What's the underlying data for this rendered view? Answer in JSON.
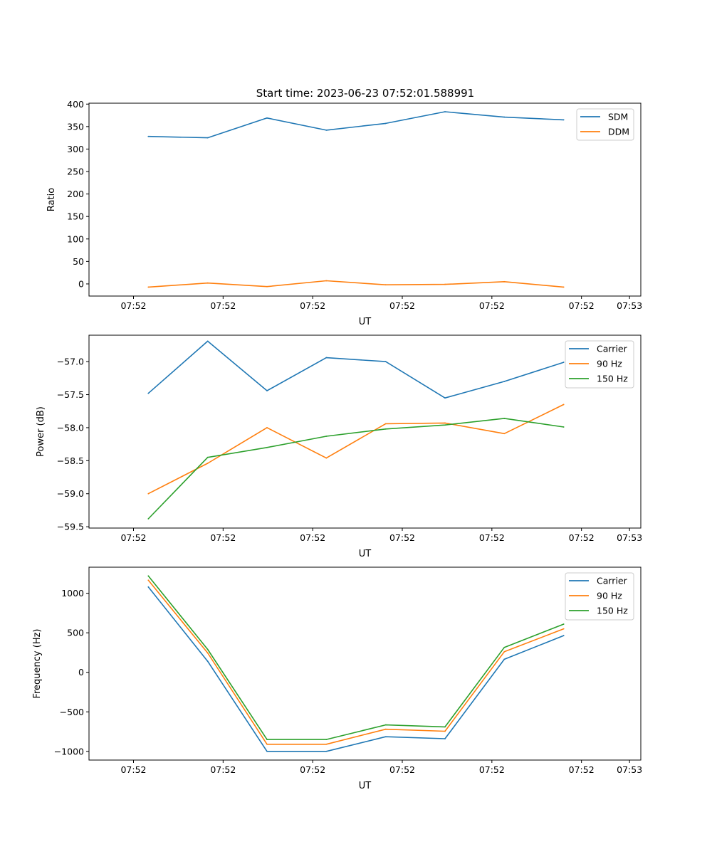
{
  "figure": {
    "title": "Start time: 2023-06-23 07:52:01.588991"
  },
  "chart_data": [
    {
      "type": "line",
      "title": "Start time: 2023-06-23 07:52:01.588991",
      "xlabel": "UT",
      "ylabel": "Ratio",
      "x": [
        1,
        2,
        3,
        4,
        5,
        6,
        7,
        8
      ],
      "xlim": [
        0,
        9.3
      ],
      "xticks": [
        0.75,
        2.26,
        3.77,
        5.28,
        6.79,
        8.3,
        9.11
      ],
      "xtick_labels": [
        "07:52",
        "07:52",
        "07:52",
        "07:52",
        "07:52",
        "07:52",
        "07:53"
      ],
      "ylim": [
        -27,
        402
      ],
      "yticks": [
        0,
        50,
        100,
        150,
        200,
        250,
        300,
        350,
        400
      ],
      "ytick_labels": [
        "0",
        "50",
        "100",
        "150",
        "200",
        "250",
        "300",
        "350",
        "400"
      ],
      "legend_position": "top-right",
      "series": [
        {
          "name": "SDM",
          "color": "#1f77b4",
          "values": [
            328,
            325,
            369,
            342,
            357,
            383,
            371,
            365
          ]
        },
        {
          "name": "DDM",
          "color": "#ff7f0e",
          "values": [
            -7,
            2,
            -6,
            7,
            -2,
            -1,
            5,
            -7
          ]
        }
      ]
    },
    {
      "type": "line",
      "xlabel": "UT",
      "ylabel": "Power (dB)",
      "x": [
        1,
        2,
        3,
        4,
        5,
        6,
        7,
        8
      ],
      "xlim": [
        0,
        9.3
      ],
      "xticks": [
        0.75,
        2.26,
        3.77,
        5.28,
        6.79,
        8.3,
        9.11
      ],
      "xtick_labels": [
        "07:52",
        "07:52",
        "07:52",
        "07:52",
        "07:52",
        "07:52",
        "07:53"
      ],
      "ylim": [
        -59.52,
        -56.6
      ],
      "yticks": [
        -59.5,
        -59.0,
        -58.5,
        -58.0,
        -57.5,
        -57.0
      ],
      "ytick_labels": [
        "−59.5",
        "−59.0",
        "−58.5",
        "−58.0",
        "−57.5",
        "−57.0"
      ],
      "legend_position": "top-right",
      "series": [
        {
          "name": "Carrier",
          "color": "#1f77b4",
          "values": [
            -57.48,
            -56.69,
            -57.44,
            -56.94,
            -57.0,
            -57.55,
            -57.3,
            -57.01
          ]
        },
        {
          "name": "90 Hz",
          "color": "#ff7f0e",
          "values": [
            -59.0,
            -58.54,
            -58.0,
            -58.46,
            -57.94,
            -57.93,
            -58.09,
            -57.65
          ]
        },
        {
          "name": "150 Hz",
          "color": "#2ca02c",
          "values": [
            -59.38,
            -58.45,
            -58.3,
            -58.13,
            -58.02,
            -57.96,
            -57.86,
            -57.99
          ]
        }
      ]
    },
    {
      "type": "line",
      "xlabel": "UT",
      "ylabel": "Frequency (Hz)",
      "x": [
        1,
        2,
        3,
        4,
        5,
        6,
        7,
        8
      ],
      "xlim": [
        0,
        9.3
      ],
      "xticks": [
        0.75,
        2.26,
        3.77,
        5.28,
        6.79,
        8.3,
        9.11
      ],
      "xtick_labels": [
        "07:52",
        "07:52",
        "07:52",
        "07:52",
        "07:52",
        "07:52",
        "07:53"
      ],
      "ylim": [
        -1110,
        1330
      ],
      "yticks": [
        -1000,
        -500,
        0,
        500,
        1000
      ],
      "ytick_labels": [
        "−1000",
        "−500",
        "0",
        "500",
        "1000"
      ],
      "legend_position": "top-right",
      "series": [
        {
          "name": "Carrier",
          "color": "#1f77b4",
          "values": [
            1080,
            140,
            -1000,
            -1000,
            -815,
            -840,
            165,
            465
          ]
        },
        {
          "name": "90 Hz",
          "color": "#ff7f0e",
          "values": [
            1165,
            245,
            -910,
            -910,
            -720,
            -745,
            260,
            550
          ]
        },
        {
          "name": "150 Hz",
          "color": "#2ca02c",
          "values": [
            1220,
            290,
            -850,
            -850,
            -665,
            -690,
            315,
            610
          ]
        }
      ]
    }
  ]
}
